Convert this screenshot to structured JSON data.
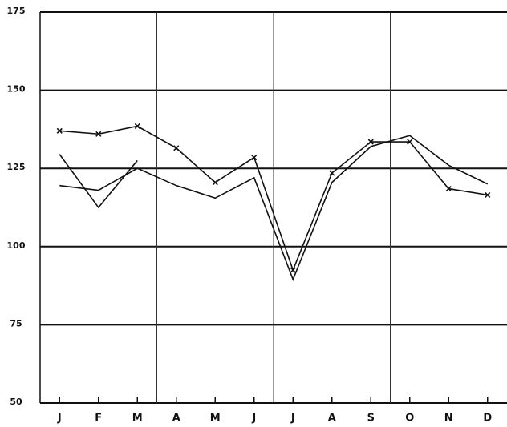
{
  "chart_data": {
    "type": "line",
    "categories": [
      "J",
      "F",
      "M",
      "A",
      "M",
      "J",
      "J",
      "A",
      "S",
      "O",
      "N",
      "D"
    ],
    "series": [
      {
        "color": "#111111",
        "marker": "x",
        "values": [
          137,
          136,
          138.5,
          131.5,
          120.5,
          128.5,
          92.5,
          123.5,
          133.5,
          133.5,
          118.5,
          116.5
        ]
      },
      {
        "color": "#111111",
        "values": [
          119.5,
          118,
          125,
          119.5,
          115.5,
          122,
          89.5,
          120.5,
          132,
          135.5,
          126,
          120
        ]
      },
      {
        "color": "#111111",
        "values": [
          129.5,
          112.5,
          127.5,
          null,
          null,
          null,
          null,
          null,
          null,
          null,
          null,
          null
        ]
      }
    ],
    "ylim": [
      50,
      175
    ],
    "yticks": [
      50,
      75,
      100,
      125,
      150,
      175
    ],
    "grid": true
  }
}
